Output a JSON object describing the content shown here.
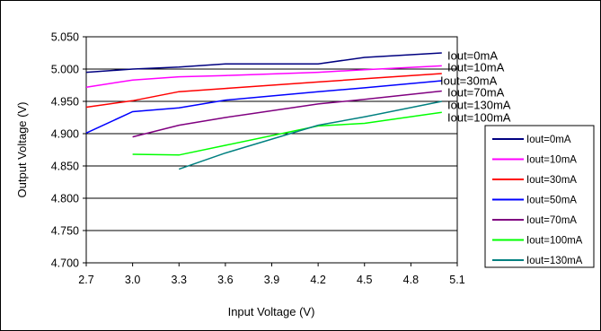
{
  "chart_data": {
    "type": "line",
    "title": "",
    "xlabel": "Input Voltage (V)",
    "ylabel": "Output Voltage (V)",
    "xlim": [
      2.7,
      5.1
    ],
    "ylim": [
      4.7,
      5.05
    ],
    "xticks": [
      "2.7",
      "3.0",
      "3.3",
      "3.6",
      "3.9",
      "4.2",
      "4.5",
      "4.8",
      "5.1"
    ],
    "yticks": [
      "4.700",
      "4.750",
      "4.800",
      "4.850",
      "4.900",
      "4.950",
      "5.000",
      "5.050"
    ],
    "grid": "horizontal",
    "legend_position": "right",
    "series": [
      {
        "name": "Iout=0mA",
        "color": "#000080",
        "x": [
          2.7,
          3.0,
          3.3,
          3.6,
          4.2,
          4.5,
          5.0
        ],
        "y": [
          4.995,
          5.0,
          5.003,
          5.008,
          5.008,
          5.018,
          5.025
        ]
      },
      {
        "name": "Iout=10mA",
        "color": "#ff00ff",
        "x": [
          2.7,
          3.0,
          3.3,
          3.6,
          4.2,
          4.5,
          5.0
        ],
        "y": [
          4.972,
          4.983,
          4.988,
          4.99,
          4.995,
          4.999,
          5.005
        ]
      },
      {
        "name": "Iout=30mA",
        "color": "#ff0000",
        "x": [
          2.7,
          3.0,
          3.3,
          3.6,
          4.2,
          4.5,
          5.0
        ],
        "y": [
          4.941,
          4.951,
          4.965,
          4.97,
          4.98,
          4.985,
          4.993
        ]
      },
      {
        "name": "Iout=50mA",
        "color": "#0000ff",
        "x": [
          2.7,
          3.0,
          3.3,
          3.6,
          4.2,
          4.5,
          5.0
        ],
        "y": [
          4.901,
          4.934,
          4.94,
          4.952,
          4.965,
          4.971,
          4.982
        ]
      },
      {
        "name": "Iout=70mA",
        "color": "#800080",
        "x": [
          3.0,
          3.3,
          3.6,
          4.2,
          4.5,
          5.0
        ],
        "y": [
          4.895,
          4.913,
          4.925,
          4.946,
          4.953,
          4.966
        ]
      },
      {
        "name": "Iout=100mA",
        "color": "#00ff00",
        "x": [
          3.0,
          3.3,
          3.6,
          4.2,
          4.5,
          5.0
        ],
        "y": [
          4.868,
          4.867,
          4.882,
          4.912,
          4.916,
          4.933
        ]
      },
      {
        "name": "Iout=130mA",
        "color": "#008080",
        "x": [
          3.3,
          3.6,
          4.2,
          4.5,
          5.0
        ],
        "y": [
          4.845,
          4.87,
          4.913,
          4.926,
          4.95
        ]
      }
    ],
    "end_labels": [
      "Iout=0mA",
      "Iout=10mA",
      "Iout=30mA",
      "Iout=70mA",
      "Iout=130mA",
      "Iout=100mA"
    ]
  }
}
